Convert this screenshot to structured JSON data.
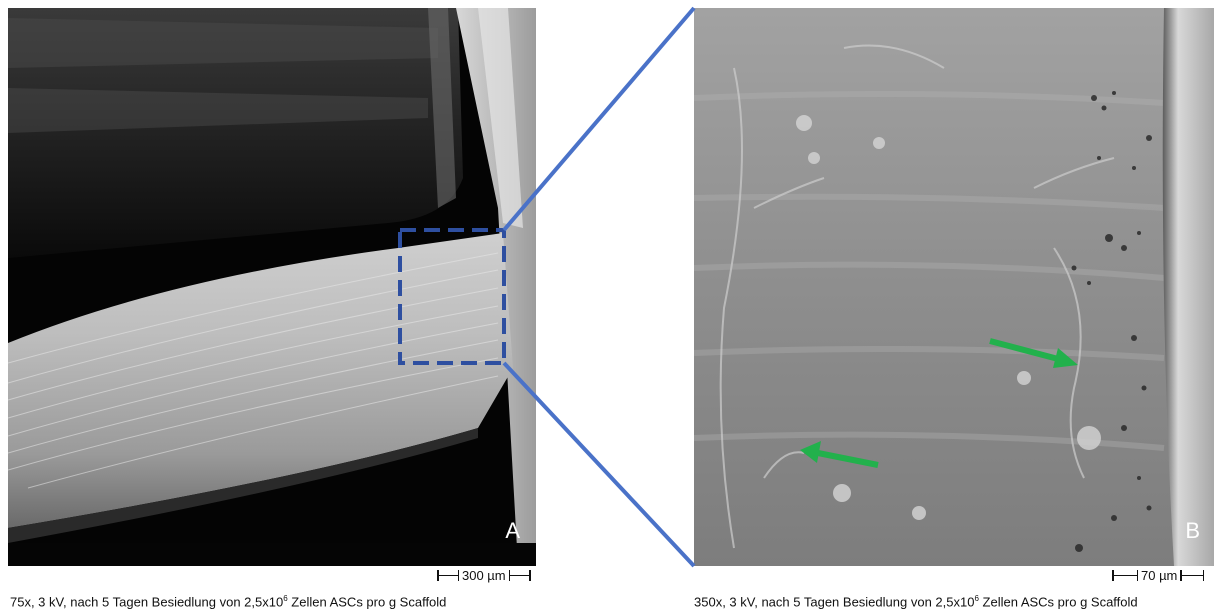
{
  "panels": {
    "a": {
      "label": "A",
      "scale_bar": "300 µm",
      "caption": {
        "prefix": "75x, 3 kV, nach 5 Tagen Besiedlung von 2,5x10",
        "exponent": "6",
        "suffix": " Zellen ASCs pro g Scaffold"
      }
    },
    "b": {
      "label": "B",
      "scale_bar": "70 µm",
      "caption": {
        "prefix": "350x, 3 kV, nach 5 Tagen Besiedlung von 2,5x10",
        "exponent": "6",
        "suffix": " Zellen ASCs pro g Scaffold"
      }
    }
  },
  "colors": {
    "zoom_box": "#2e4fa0",
    "zoom_lines": "#4a72c8",
    "arrows": "#22b14c"
  }
}
